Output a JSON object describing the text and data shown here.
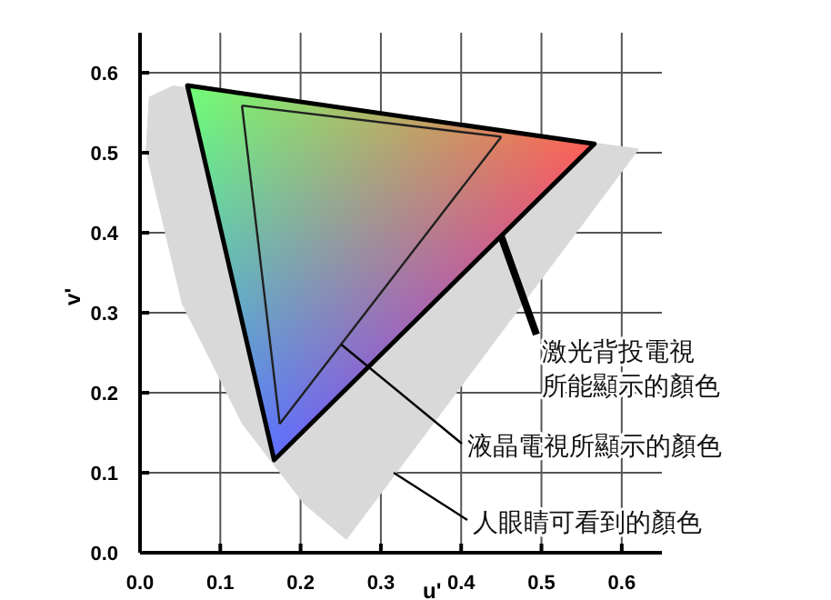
{
  "chart_data": {
    "type": "line",
    "xlabel": "u'",
    "ylabel": "v'",
    "xlim": [
      0,
      0.65
    ],
    "ylim": [
      0,
      0.65
    ],
    "xticks": [
      {
        "value": 0,
        "label": "0.0"
      },
      0.1,
      0.2,
      0.3,
      0.4,
      0.5,
      0.6
    ],
    "yticks": [
      {
        "value": 0,
        "label": "0.0"
      },
      0.1,
      0.2,
      0.3,
      0.4,
      0.5,
      0.6
    ],
    "grid": true,
    "series": [
      {
        "type": "area",
        "color": "#d9d9d9",
        "x": [
          0.011,
          0.041,
          0.622,
          0.257,
          0.204,
          0.127,
          0.052,
          0.007
        ],
        "values": [
          0.57,
          0.584,
          0.505,
          0.016,
          0.061,
          0.161,
          0.311,
          0.502
        ]
      },
      {
        "type": "area",
        "color": "#000000",
        "colors": [
          "#00ff00",
          "#ff0000",
          "#0000ff"
        ],
        "x": [
          0.059,
          0.566,
          0.167
        ],
        "values": [
          0.584,
          0.511,
          0.116
        ]
      },
      {
        "color": "#202020",
        "x": [
          0.127,
          0.45
        ],
        "values": [
          0.559,
          0.52
        ]
      },
      {
        "color": "#202020",
        "x": [
          0.174,
          0.45
        ],
        "values": [
          0.161,
          0.52
        ]
      },
      {
        "color": "#202020",
        "x": [
          0.127,
          0.174
        ],
        "values": [
          0.559,
          0.161
        ]
      }
    ],
    "annotations": [
      {
        "text": "激光背投電視所能顯示的顏色",
        "x": 0.45,
        "y": 0.395
      },
      {
        "text": "液晶電視所顯示的顏色",
        "x": 0.251,
        "y": 0.26
      },
      {
        "text": "人眼睛可看到的顏色",
        "x": 0.316,
        "y": 0.1
      }
    ]
  }
}
